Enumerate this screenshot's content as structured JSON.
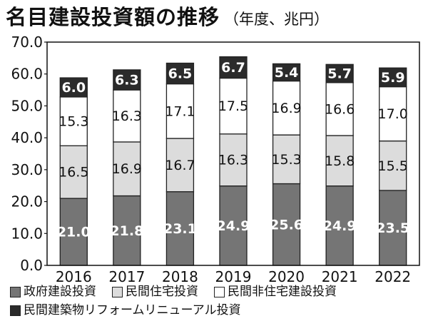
{
  "title": "名目建設投資額の推移",
  "unit": "（年度、兆円）",
  "colors": {
    "government": "#757575",
    "residential": "#dcdcdc",
    "nonresidential": "#ffffff",
    "renovation": "#2b2b2b"
  },
  "chart_data": {
    "type": "bar",
    "stacked": true,
    "title": "名目建設投資額の推移",
    "unit": "（年度、兆円）",
    "categories": [
      "2016",
      "2017",
      "2018",
      "2019",
      "2020",
      "2021",
      "2022"
    ],
    "ylim": [
      0,
      70
    ],
    "yticks": [
      "0.0",
      "10.0",
      "20.0",
      "30.0",
      "40.0",
      "50.0",
      "60.0",
      "70.0"
    ],
    "grid": false,
    "legend_position": "bottom",
    "series": [
      {
        "name": "政府建設投資",
        "values": [
          21.0,
          21.8,
          23.1,
          24.9,
          25.6,
          24.9,
          23.5
        ],
        "labels": [
          "21.0",
          "21.8",
          "23.1",
          "24.9",
          "25.6",
          "24.9",
          "23.5"
        ]
      },
      {
        "name": "民間住宅投資",
        "values": [
          16.5,
          16.9,
          16.7,
          16.3,
          15.3,
          15.8,
          15.5
        ],
        "labels": [
          "16.5",
          "16.9",
          "16.7",
          "16.3",
          "15.3",
          "15.8",
          "15.5"
        ]
      },
      {
        "name": "民間非住宅建設投資",
        "values": [
          15.3,
          16.3,
          17.1,
          17.5,
          16.9,
          16.6,
          17.0
        ],
        "labels": [
          "15.3",
          "16.3",
          "17.1",
          "17.5",
          "16.9",
          "16.6",
          "17.0"
        ]
      },
      {
        "name": "民間建築物リフォームリニューアル投資",
        "values": [
          6.0,
          6.3,
          6.5,
          6.7,
          5.4,
          5.7,
          5.9
        ],
        "labels": [
          "6.0",
          "6.3",
          "6.5",
          "6.7",
          "5.4",
          "5.7",
          "5.9"
        ]
      }
    ]
  }
}
